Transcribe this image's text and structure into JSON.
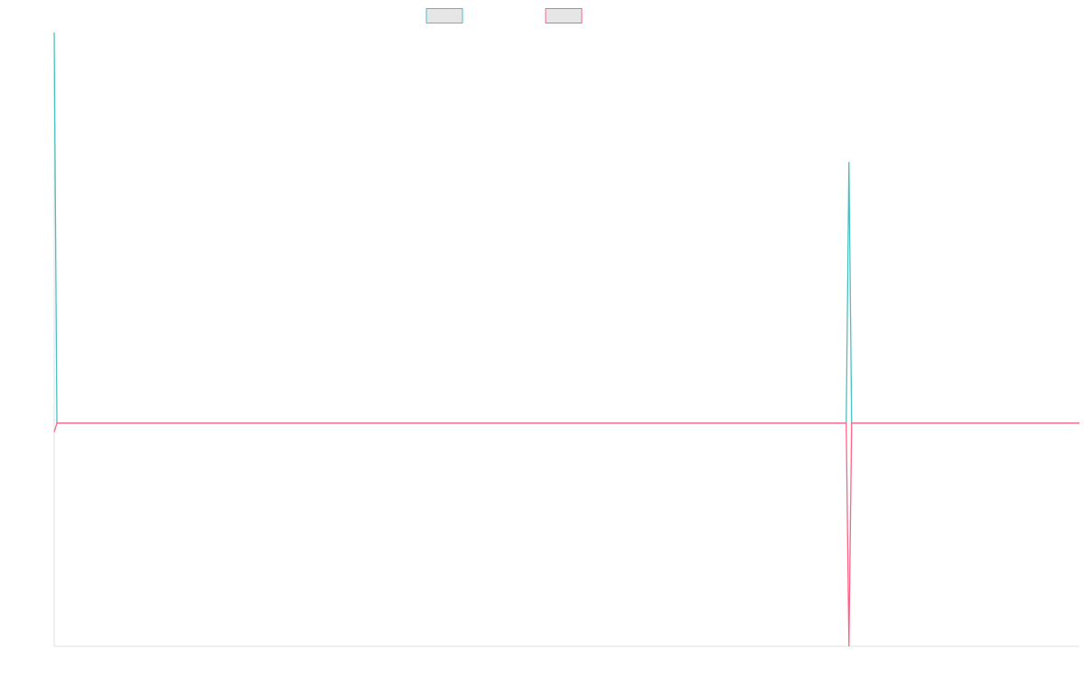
{
  "chart_data": {
    "type": "line",
    "x": [
      0,
      1,
      292,
      293,
      294,
      378
    ],
    "xlim": [
      0,
      378
    ],
    "ylim": [
      -1,
      1.75
    ],
    "series": [
      {
        "color": "#4bc0c0",
        "values": [
          1.75,
          0,
          0,
          1.17,
          0,
          0
        ]
      },
      {
        "color": "#ff6384",
        "values": [
          -0.04,
          0,
          0,
          -1,
          0,
          0
        ]
      }
    ]
  }
}
